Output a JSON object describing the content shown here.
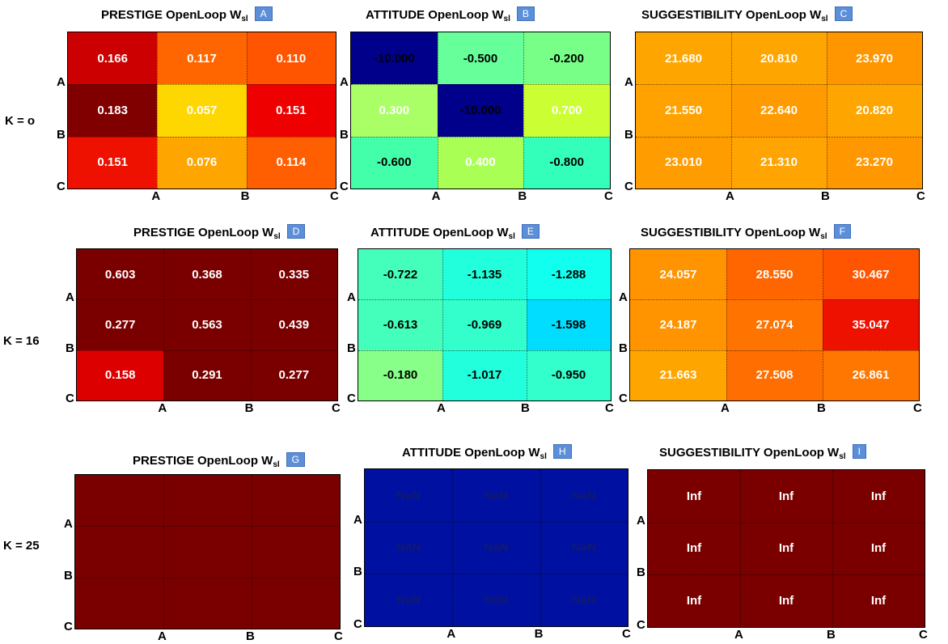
{
  "row_labels": [
    "K = o",
    "K = 16",
    "K = 25"
  ],
  "colors": {
    "dark_red": "#7a0000",
    "navy": "#00008b",
    "dark_blue": "#0010a0",
    "badge": "#5b8fd9"
  },
  "chart_data": [
    {
      "id": "A",
      "type": "heatmap",
      "title": "PRESTIGE OpenLoop W",
      "title_sub": "sl",
      "badge": "A",
      "x_ticks": [
        "A",
        "B",
        "C"
      ],
      "y_ticks": [
        "A",
        "B",
        "C"
      ],
      "values": [
        [
          "0.166",
          "0.117",
          "0.110"
        ],
        [
          "0.183",
          "0.057",
          "0.151"
        ],
        [
          "0.151",
          "0.076",
          "0.114"
        ]
      ],
      "colors": [
        [
          "#cc0000",
          "#ff6600",
          "#ff5500"
        ],
        [
          "#800000",
          "#ffd700",
          "#ee0000"
        ],
        [
          "#ee1100",
          "#ffa500",
          "#ff5f00"
        ]
      ],
      "text_color": "#ffffff"
    },
    {
      "id": "B",
      "type": "heatmap",
      "title": "ATTITUDE OpenLoop W",
      "title_sub": "sl",
      "badge": "B",
      "x_ticks": [
        "A",
        "B",
        "C"
      ],
      "y_ticks": [
        "A",
        "B",
        "C"
      ],
      "values": [
        [
          "-10.000",
          "-0.500",
          "-0.200"
        ],
        [
          "0.300",
          "-10.000",
          "0.700"
        ],
        [
          "-0.600",
          "0.400",
          "-0.800"
        ]
      ],
      "colors": [
        [
          "#00008b",
          "#66ff99",
          "#77ff88"
        ],
        [
          "#aaff66",
          "#00008b",
          "#ccff33"
        ],
        [
          "#44ffaa",
          "#aaff55",
          "#33ffbb"
        ]
      ],
      "text_colors": [
        [
          "#000000",
          "#000000",
          "#000000"
        ],
        [
          "#ffffff",
          "#000000",
          "#ffffff"
        ],
        [
          "#000000",
          "#ffffff",
          "#000000"
        ]
      ]
    },
    {
      "id": "C",
      "type": "heatmap",
      "title": "SUGGESTIBILITY OpenLoop W",
      "title_sub": "sl",
      "badge": "C",
      "x_ticks": [
        "A",
        "B",
        "C"
      ],
      "y_ticks": [
        "A",
        "B",
        "C"
      ],
      "values": [
        [
          "21.680",
          "20.810",
          "23.970"
        ],
        [
          "21.550",
          "22.640",
          "20.820"
        ],
        [
          "23.010",
          "21.310",
          "23.270"
        ]
      ],
      "colors": [
        [
          "#ffa500",
          "#ffa500",
          "#ff9600"
        ],
        [
          "#ffa200",
          "#ff9a00",
          "#ffa500"
        ],
        [
          "#ff9c00",
          "#ffa400",
          "#ff9700"
        ]
      ],
      "text_color": "#ffffff"
    },
    {
      "id": "D",
      "type": "heatmap",
      "title": "PRESTIGE OpenLoop W",
      "title_sub": "sl",
      "badge": "D",
      "x_ticks": [
        "A",
        "B",
        "C"
      ],
      "y_ticks": [
        "A",
        "B",
        "C"
      ],
      "values": [
        [
          "0.603",
          "0.368",
          "0.335"
        ],
        [
          "0.277",
          "0.563",
          "0.439"
        ],
        [
          "0.158",
          "0.291",
          "0.277"
        ]
      ],
      "colors": [
        [
          "#7a0000",
          "#7a0000",
          "#7a0000"
        ],
        [
          "#7a0000",
          "#7a0000",
          "#7a0000"
        ],
        [
          "#dd0000",
          "#7a0000",
          "#7a0000"
        ]
      ],
      "text_color": "#ffffff"
    },
    {
      "id": "E",
      "type": "heatmap",
      "title": "ATTITUDE OpenLoop W",
      "title_sub": "sl",
      "badge": "E",
      "x_ticks": [
        "A",
        "B",
        "C"
      ],
      "y_ticks": [
        "A",
        "B",
        "C"
      ],
      "values": [
        [
          "-0.722",
          "-1.135",
          "-1.288"
        ],
        [
          "-0.613",
          "-0.969",
          "-1.598"
        ],
        [
          "-0.180",
          "-1.017",
          "-0.950"
        ]
      ],
      "colors": [
        [
          "#44ffbb",
          "#22ffdd",
          "#11ffee"
        ],
        [
          "#44ffbb",
          "#33ffcc",
          "#00ddff"
        ],
        [
          "#88ff88",
          "#22ffdd",
          "#33ffcc"
        ]
      ],
      "text_color": "#000000"
    },
    {
      "id": "F",
      "type": "heatmap",
      "title": "SUGGESTIBILITY OpenLoop W",
      "title_sub": "sl",
      "badge": "F",
      "x_ticks": [
        "A",
        "B",
        "C"
      ],
      "y_ticks": [
        "A",
        "B",
        "C"
      ],
      "values": [
        [
          "24.057",
          "28.550",
          "30.467"
        ],
        [
          "24.187",
          "27.074",
          "35.047"
        ],
        [
          "21.663",
          "27.508",
          "26.861"
        ]
      ],
      "colors": [
        [
          "#ff9400",
          "#ff6600",
          "#ff5500"
        ],
        [
          "#ff9300",
          "#ff7300",
          "#ee1100"
        ],
        [
          "#ffa500",
          "#ff6e00",
          "#ff7600"
        ]
      ],
      "text_color": "#ffffff"
    },
    {
      "id": "G",
      "type": "heatmap",
      "title": "PRESTIGE OpenLoop W",
      "title_sub": "sl",
      "badge": "G",
      "x_ticks": [
        "A",
        "B",
        "C"
      ],
      "y_ticks": [
        "A",
        "B",
        "C"
      ],
      "values": [
        [
          "",
          "",
          ""
        ],
        [
          "",
          "",
          ""
        ],
        [
          "",
          "",
          ""
        ]
      ],
      "colors": [
        [
          "#7a0000",
          "#7a0000",
          "#7a0000"
        ],
        [
          "#7a0000",
          "#7a0000",
          "#7a0000"
        ],
        [
          "#7a0000",
          "#7a0000",
          "#7a0000"
        ]
      ],
      "text_color": "#ffffff"
    },
    {
      "id": "H",
      "type": "heatmap",
      "title": "ATTITUDE OpenLoop W",
      "title_sub": "sl",
      "badge": "H",
      "x_ticks": [
        "A",
        "B",
        "C"
      ],
      "y_ticks": [
        "A",
        "B",
        "C"
      ],
      "values": [
        [
          "NaN",
          "NaN",
          "NaN"
        ],
        [
          "NaN",
          "NaN",
          "NaN"
        ],
        [
          "NaN",
          "NaN",
          "NaN"
        ]
      ],
      "colors": [
        [
          "#0010a0",
          "#0010a0",
          "#0010a0"
        ],
        [
          "#0010a0",
          "#0010a0",
          "#0010a0"
        ],
        [
          "#0010a0",
          "#0010a0",
          "#0010a0"
        ]
      ],
      "text_color": "#101a70"
    },
    {
      "id": "I",
      "type": "heatmap",
      "title": "SUGGESTIBILITY OpenLoop W",
      "title_sub": "sl",
      "badge": "I",
      "x_ticks": [
        "A",
        "B",
        "C"
      ],
      "y_ticks": [
        "A",
        "B",
        "C"
      ],
      "values": [
        [
          "Inf",
          "Inf",
          "Inf"
        ],
        [
          "Inf",
          "Inf",
          "Inf"
        ],
        [
          "Inf",
          "Inf",
          "Inf"
        ]
      ],
      "colors": [
        [
          "#7a0000",
          "#7a0000",
          "#7a0000"
        ],
        [
          "#7a0000",
          "#7a0000",
          "#7a0000"
        ],
        [
          "#7a0000",
          "#7a0000",
          "#7a0000"
        ]
      ],
      "text_color": "#ffffff"
    }
  ]
}
